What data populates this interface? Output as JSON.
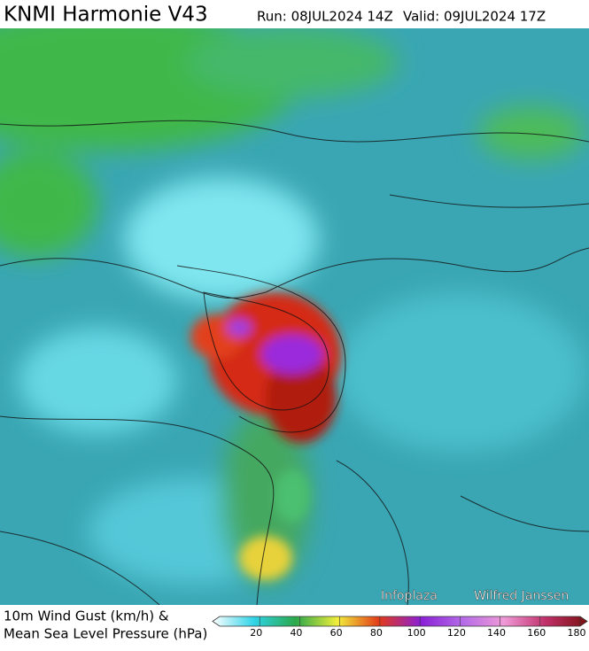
{
  "header": {
    "title": "KNMI Harmonie V43",
    "run": "Run: 08JUL2024 14Z",
    "valid": "Valid: 09JUL2024 17Z"
  },
  "footer": {
    "line1": "10m Wind Gust (km/h) &",
    "line2": "Mean Sea Level Pressure (hPa)"
  },
  "credits": [
    "Infoplaza",
    "Wilfred Janssen"
  ],
  "legend": {
    "range": [
      0,
      180
    ],
    "ticks": [
      20,
      40,
      60,
      80,
      100,
      120,
      140,
      160,
      180
    ],
    "colors": [
      "#ffffff",
      "#2fd3e8",
      "#2ba84a",
      "#f2ee3a",
      "#e23a1a",
      "#8a1fd6",
      "#b46ae8",
      "#f09ad8",
      "#c0306a",
      "#7a1010"
    ]
  }
}
